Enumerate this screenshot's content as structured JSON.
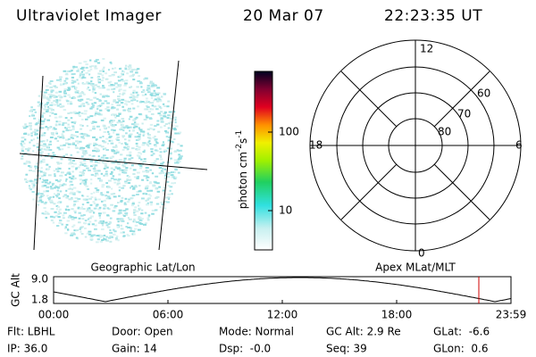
{
  "header": {
    "instrument": "Ultraviolet Imager",
    "date": "20 Mar 07",
    "time": "22:23:35 UT"
  },
  "colorbar": {
    "label": "photon cm",
    "exp1": "-2",
    "unit2": "s",
    "exp2": "-1",
    "ticks": [
      "100",
      "10"
    ]
  },
  "polar": {
    "mlt": [
      "12",
      "18",
      "6",
      "0"
    ],
    "mlat": [
      "60",
      "70",
      "80"
    ]
  },
  "altitude": {
    "axis_label": "GC Alt",
    "ticks": [
      "9.0",
      "1.8"
    ],
    "left_title": "Geographic Lat/Lon",
    "right_title": "Apex MLat/MLT",
    "times": [
      "00:00",
      "06:00",
      "12:00",
      "18:00",
      "23:59"
    ]
  },
  "info": {
    "rows": [
      [
        "Flt: LBHL",
        "Door: Open",
        "Mode: Normal",
        "GC Alt: 2.9 Re",
        "GLat:  -6.6"
      ],
      [
        "IP: 36.0",
        "Gain: 14",
        "Dsp:  -0.0",
        "Seq: 39",
        "GLon:  0.6"
      ]
    ]
  }
}
